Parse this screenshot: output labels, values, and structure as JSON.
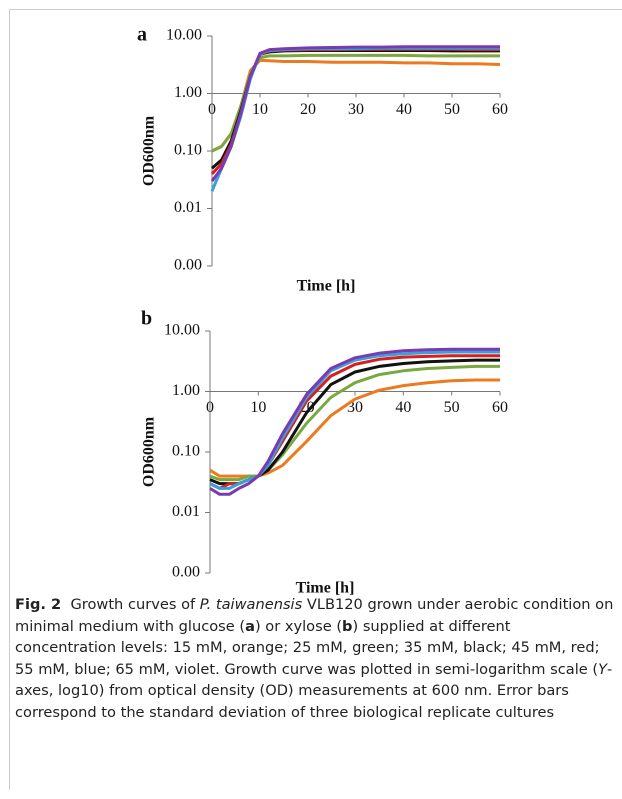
{
  "chart_data": [
    {
      "type": "line",
      "panel": "a",
      "x_label": "Time [h]",
      "y_label": "OD600nm",
      "log_y": true,
      "grid": false,
      "x_axis_at": 1,
      "xlim": [
        0,
        60
      ],
      "xticks": [
        0,
        10,
        20,
        30,
        40,
        50,
        60
      ],
      "ylim": [
        0.001,
        10
      ],
      "yticks": [
        {
          "value": 10,
          "label": "10.00"
        },
        {
          "value": 1,
          "label": "1.00"
        },
        {
          "value": 0.1,
          "label": "0.10"
        },
        {
          "value": 0.01,
          "label": "0.01"
        },
        {
          "value": 0.001,
          "label": "0.00"
        }
      ],
      "x": [
        0,
        2,
        4,
        6,
        8,
        10,
        12,
        15,
        20,
        25,
        30,
        35,
        40,
        45,
        50,
        55,
        60
      ],
      "series": [
        {
          "color": "#ec7a1e",
          "values": [
            0.1,
            0.12,
            0.2,
            0.6,
            2.5,
            3.8,
            3.7,
            3.6,
            3.6,
            3.5,
            3.5,
            3.5,
            3.4,
            3.4,
            3.3,
            3.3,
            3.2
          ]
        },
        {
          "color": "#7aa83e",
          "values": [
            0.1,
            0.12,
            0.2,
            0.6,
            2.2,
            4.2,
            4.5,
            4.5,
            4.6,
            4.6,
            4.6,
            4.6,
            4.6,
            4.5,
            4.5,
            4.5,
            4.5
          ]
        },
        {
          "color": "#111111",
          "values": [
            0.05,
            0.07,
            0.15,
            0.5,
            2,
            4.8,
            5.3,
            5.5,
            5.6,
            5.6,
            5.6,
            5.6,
            5.6,
            5.6,
            5.5,
            5.5,
            5.5
          ]
        },
        {
          "color": "#d42020",
          "values": [
            0.04,
            0.06,
            0.13,
            0.45,
            1.9,
            4.8,
            5.5,
            5.7,
            5.8,
            5.8,
            5.9,
            5.9,
            5.9,
            5.9,
            5.9,
            5.8,
            5.8
          ]
        },
        {
          "color": "#3aa0d8",
          "values": [
            0.02,
            0.05,
            0.12,
            0.4,
            1.8,
            4.9,
            5.6,
            5.8,
            6,
            6,
            6,
            6.1,
            6.1,
            6.1,
            6.1,
            6.1,
            6.1
          ]
        },
        {
          "color": "#7a3bb0",
          "values": [
            0.03,
            0.05,
            0.12,
            0.45,
            2,
            5,
            5.8,
            6,
            6.2,
            6.3,
            6.4,
            6.4,
            6.5,
            6.5,
            6.5,
            6.5,
            6.5
          ]
        }
      ]
    },
    {
      "type": "line",
      "panel": "b",
      "x_label": "Time [h]",
      "y_label": "OD600nm",
      "log_y": true,
      "grid": false,
      "x_axis_at": 1,
      "xlim": [
        0,
        60
      ],
      "xticks": [
        0,
        10,
        20,
        30,
        40,
        50,
        60
      ],
      "ylim": [
        0.001,
        10
      ],
      "yticks": [
        {
          "value": 10,
          "label": "10.00"
        },
        {
          "value": 1,
          "label": "1.00"
        },
        {
          "value": 0.1,
          "label": "0.10"
        },
        {
          "value": 0.01,
          "label": "0.01"
        },
        {
          "value": 0.001,
          "label": "0.00"
        }
      ],
      "x": [
        0,
        2,
        4,
        6,
        8,
        10,
        12,
        15,
        20,
        25,
        30,
        35,
        40,
        45,
        50,
        55,
        60
      ],
      "series": [
        {
          "color": "#ec7a1e",
          "values": [
            0.05,
            0.04,
            0.04,
            0.04,
            0.04,
            0.04,
            0.045,
            0.06,
            0.15,
            0.4,
            0.75,
            1.05,
            1.25,
            1.4,
            1.5,
            1.55,
            1.55
          ]
        },
        {
          "color": "#7aa83e",
          "values": [
            0.04,
            0.035,
            0.035,
            0.035,
            0.04,
            0.04,
            0.05,
            0.09,
            0.3,
            0.8,
            1.4,
            1.9,
            2.2,
            2.4,
            2.5,
            2.6,
            2.6
          ]
        },
        {
          "color": "#111111",
          "values": [
            0.035,
            0.03,
            0.03,
            0.03,
            0.035,
            0.04,
            0.05,
            0.1,
            0.45,
            1.3,
            2.1,
            2.6,
            2.9,
            3.1,
            3.2,
            3.3,
            3.3
          ]
        },
        {
          "color": "#d42020",
          "values": [
            0.03,
            0.025,
            0.03,
            0.03,
            0.035,
            0.04,
            0.06,
            0.15,
            0.7,
            1.8,
            2.8,
            3.4,
            3.7,
            3.8,
            3.9,
            3.9,
            3.9
          ]
        },
        {
          "color": "#3aa0d8",
          "values": [
            0.03,
            0.025,
            0.025,
            0.03,
            0.035,
            0.04,
            0.06,
            0.17,
            0.8,
            2.2,
            3.3,
            3.9,
            4.2,
            4.4,
            4.5,
            4.5,
            4.5
          ]
        },
        {
          "color": "#7a3bb0",
          "values": [
            0.025,
            0.02,
            0.02,
            0.025,
            0.03,
            0.04,
            0.07,
            0.2,
            0.9,
            2.4,
            3.6,
            4.3,
            4.7,
            4.9,
            5,
            5,
            5
          ]
        }
      ]
    }
  ],
  "caption": {
    "label": "Fig. 2",
    "parts": [
      "Growth curves of ",
      "P. taiwanensis",
      " VLB120 grown under aerobic condition on minimal medium with glucose (",
      "a",
      ") or xylose (",
      "b",
      ") supplied at different concentration levels: 15 mM, orange; 25 mM, green; 35 mM, black; 45 mM, red; 55 mM, blue; 65 mM, violet. Growth curve was plotted in semi-logarithm scale (",
      "Y",
      "-axes, log10) from optical density (OD) measurements at 600 nm. Error bars correspond to the standard deviation of three biological replicate cultures"
    ]
  }
}
